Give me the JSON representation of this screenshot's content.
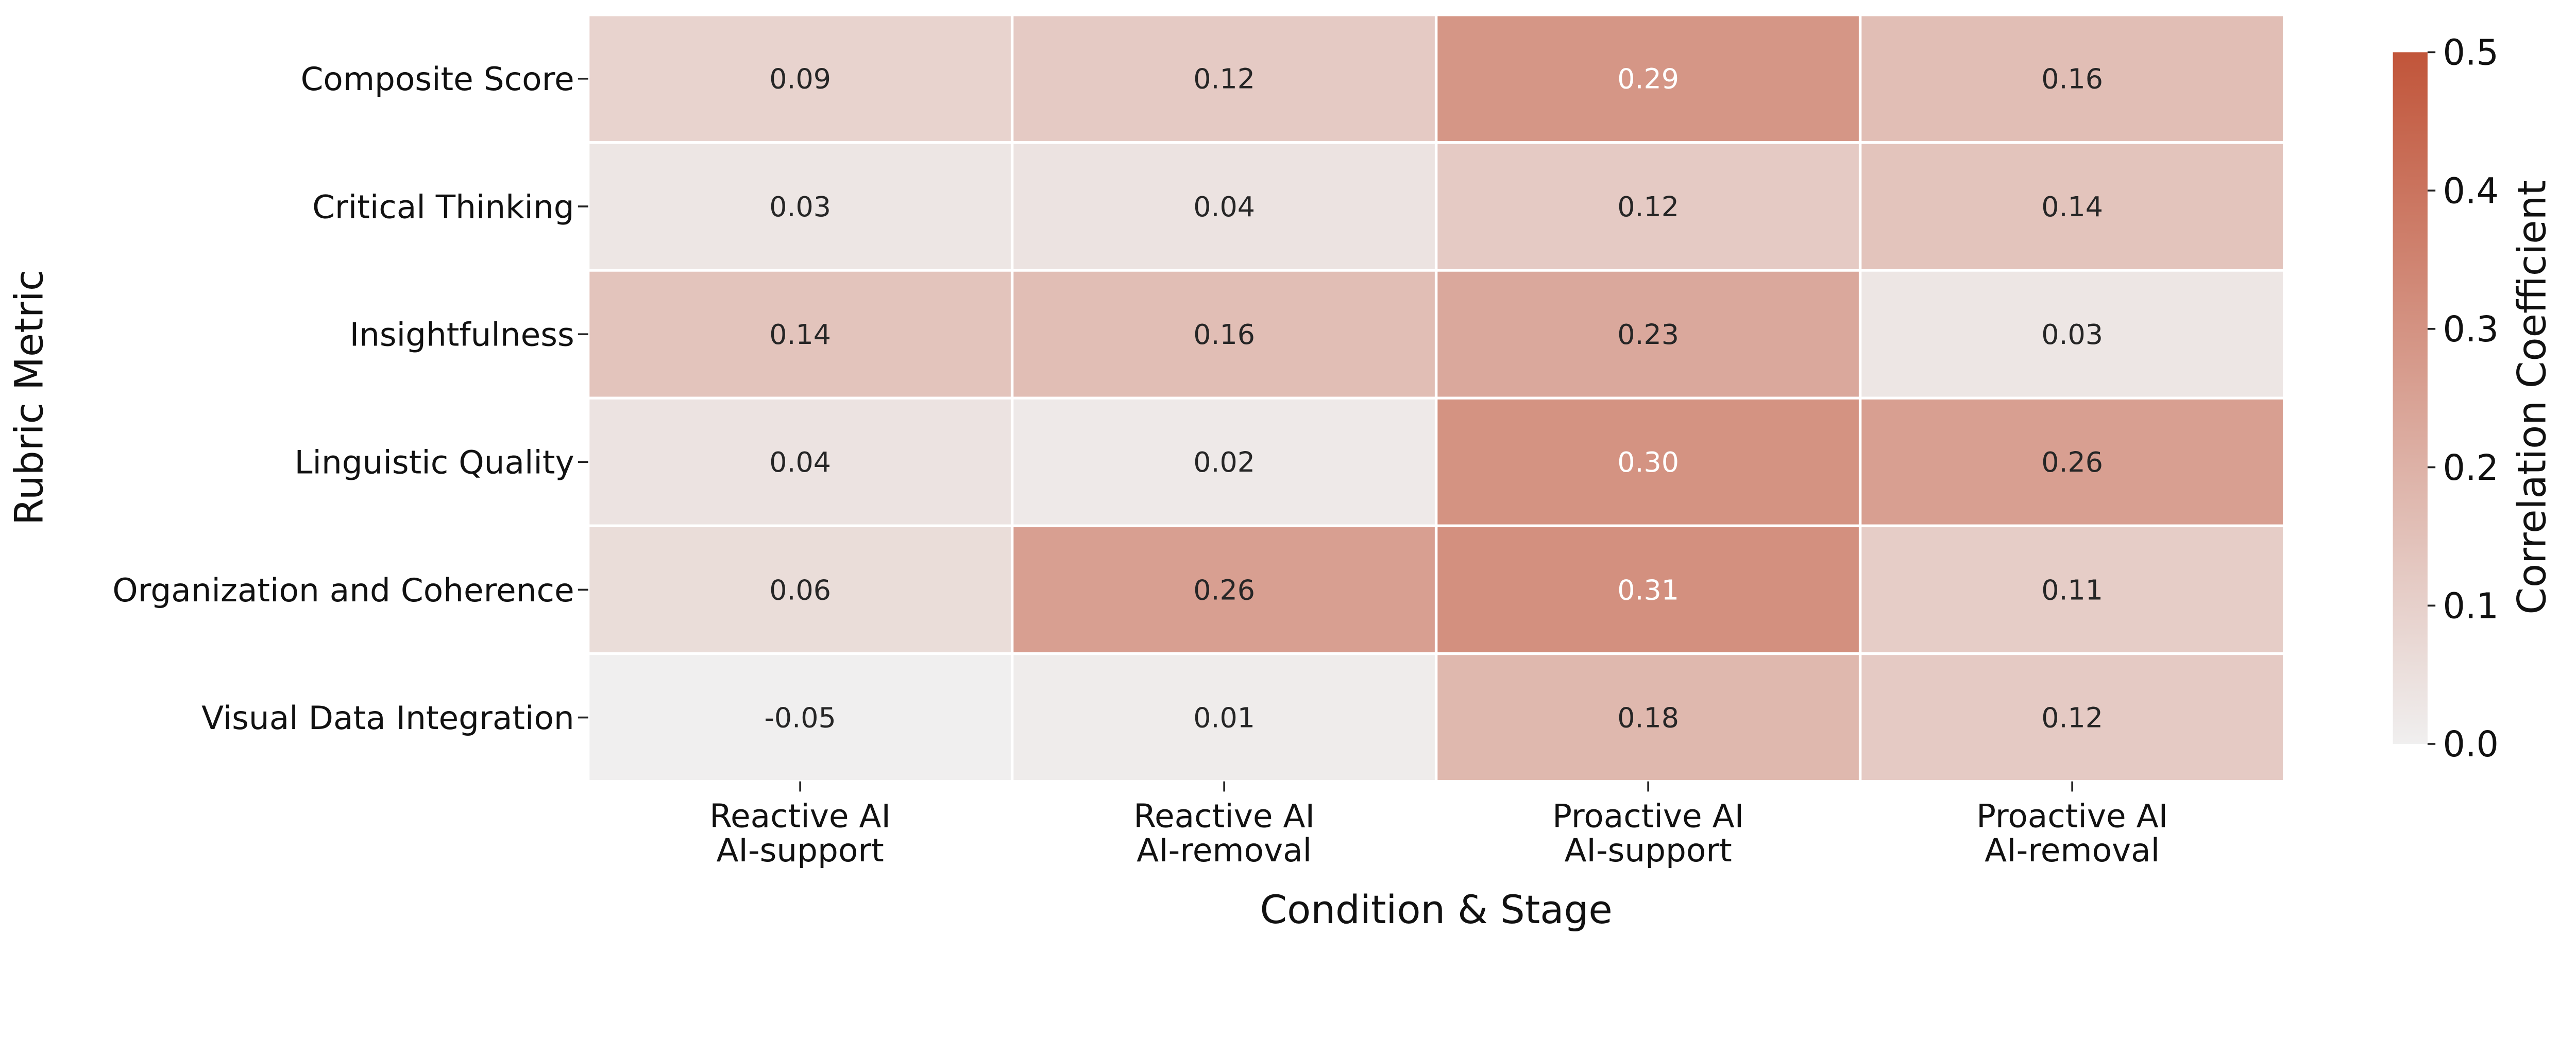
{
  "chart_data": {
    "type": "heatmap",
    "title": "",
    "xlabel": "Condition & Stage",
    "ylabel": "Rubric Metric",
    "x_categories": [
      [
        "Reactive AI",
        "AI-support"
      ],
      [
        "Reactive AI",
        "AI-removal"
      ],
      [
        "Proactive AI",
        "AI-support"
      ],
      [
        "Proactive AI",
        "AI-removal"
      ]
    ],
    "y_categories": [
      "Composite Score",
      "Critical Thinking",
      "Insightfulness",
      "Linguistic Quality",
      "Organization and Coherence",
      "Visual Data Integration"
    ],
    "values": [
      [
        0.09,
        0.12,
        0.29,
        0.16
      ],
      [
        0.03,
        0.04,
        0.12,
        0.14
      ],
      [
        0.14,
        0.16,
        0.23,
        0.03
      ],
      [
        0.04,
        0.02,
        0.3,
        0.26
      ],
      [
        0.06,
        0.26,
        0.31,
        0.11
      ],
      [
        -0.05,
        0.01,
        0.18,
        0.12
      ]
    ],
    "value_labels": [
      [
        "0.09",
        "0.12",
        "0.29",
        "0.16"
      ],
      [
        "0.03",
        "0.04",
        "0.12",
        "0.14"
      ],
      [
        "0.14",
        "0.16",
        "0.23",
        "0.03"
      ],
      [
        "0.04",
        "0.02",
        "0.30",
        "0.26"
      ],
      [
        "0.06",
        "0.26",
        "0.31",
        "0.11"
      ],
      [
        "-0.05",
        "0.01",
        "0.18",
        "0.12"
      ]
    ],
    "colorbar": {
      "label": "Correlation Coefficient",
      "range": [
        0.0,
        0.5
      ],
      "ticks": [
        "0.0",
        "0.1",
        "0.2",
        "0.3",
        "0.4",
        "0.5"
      ],
      "color_low": "#f0efef",
      "color_high": "#c1553a"
    },
    "grid": false,
    "annotation_text_colors": {
      "dark": "#262626",
      "light": "#ffffff"
    }
  }
}
